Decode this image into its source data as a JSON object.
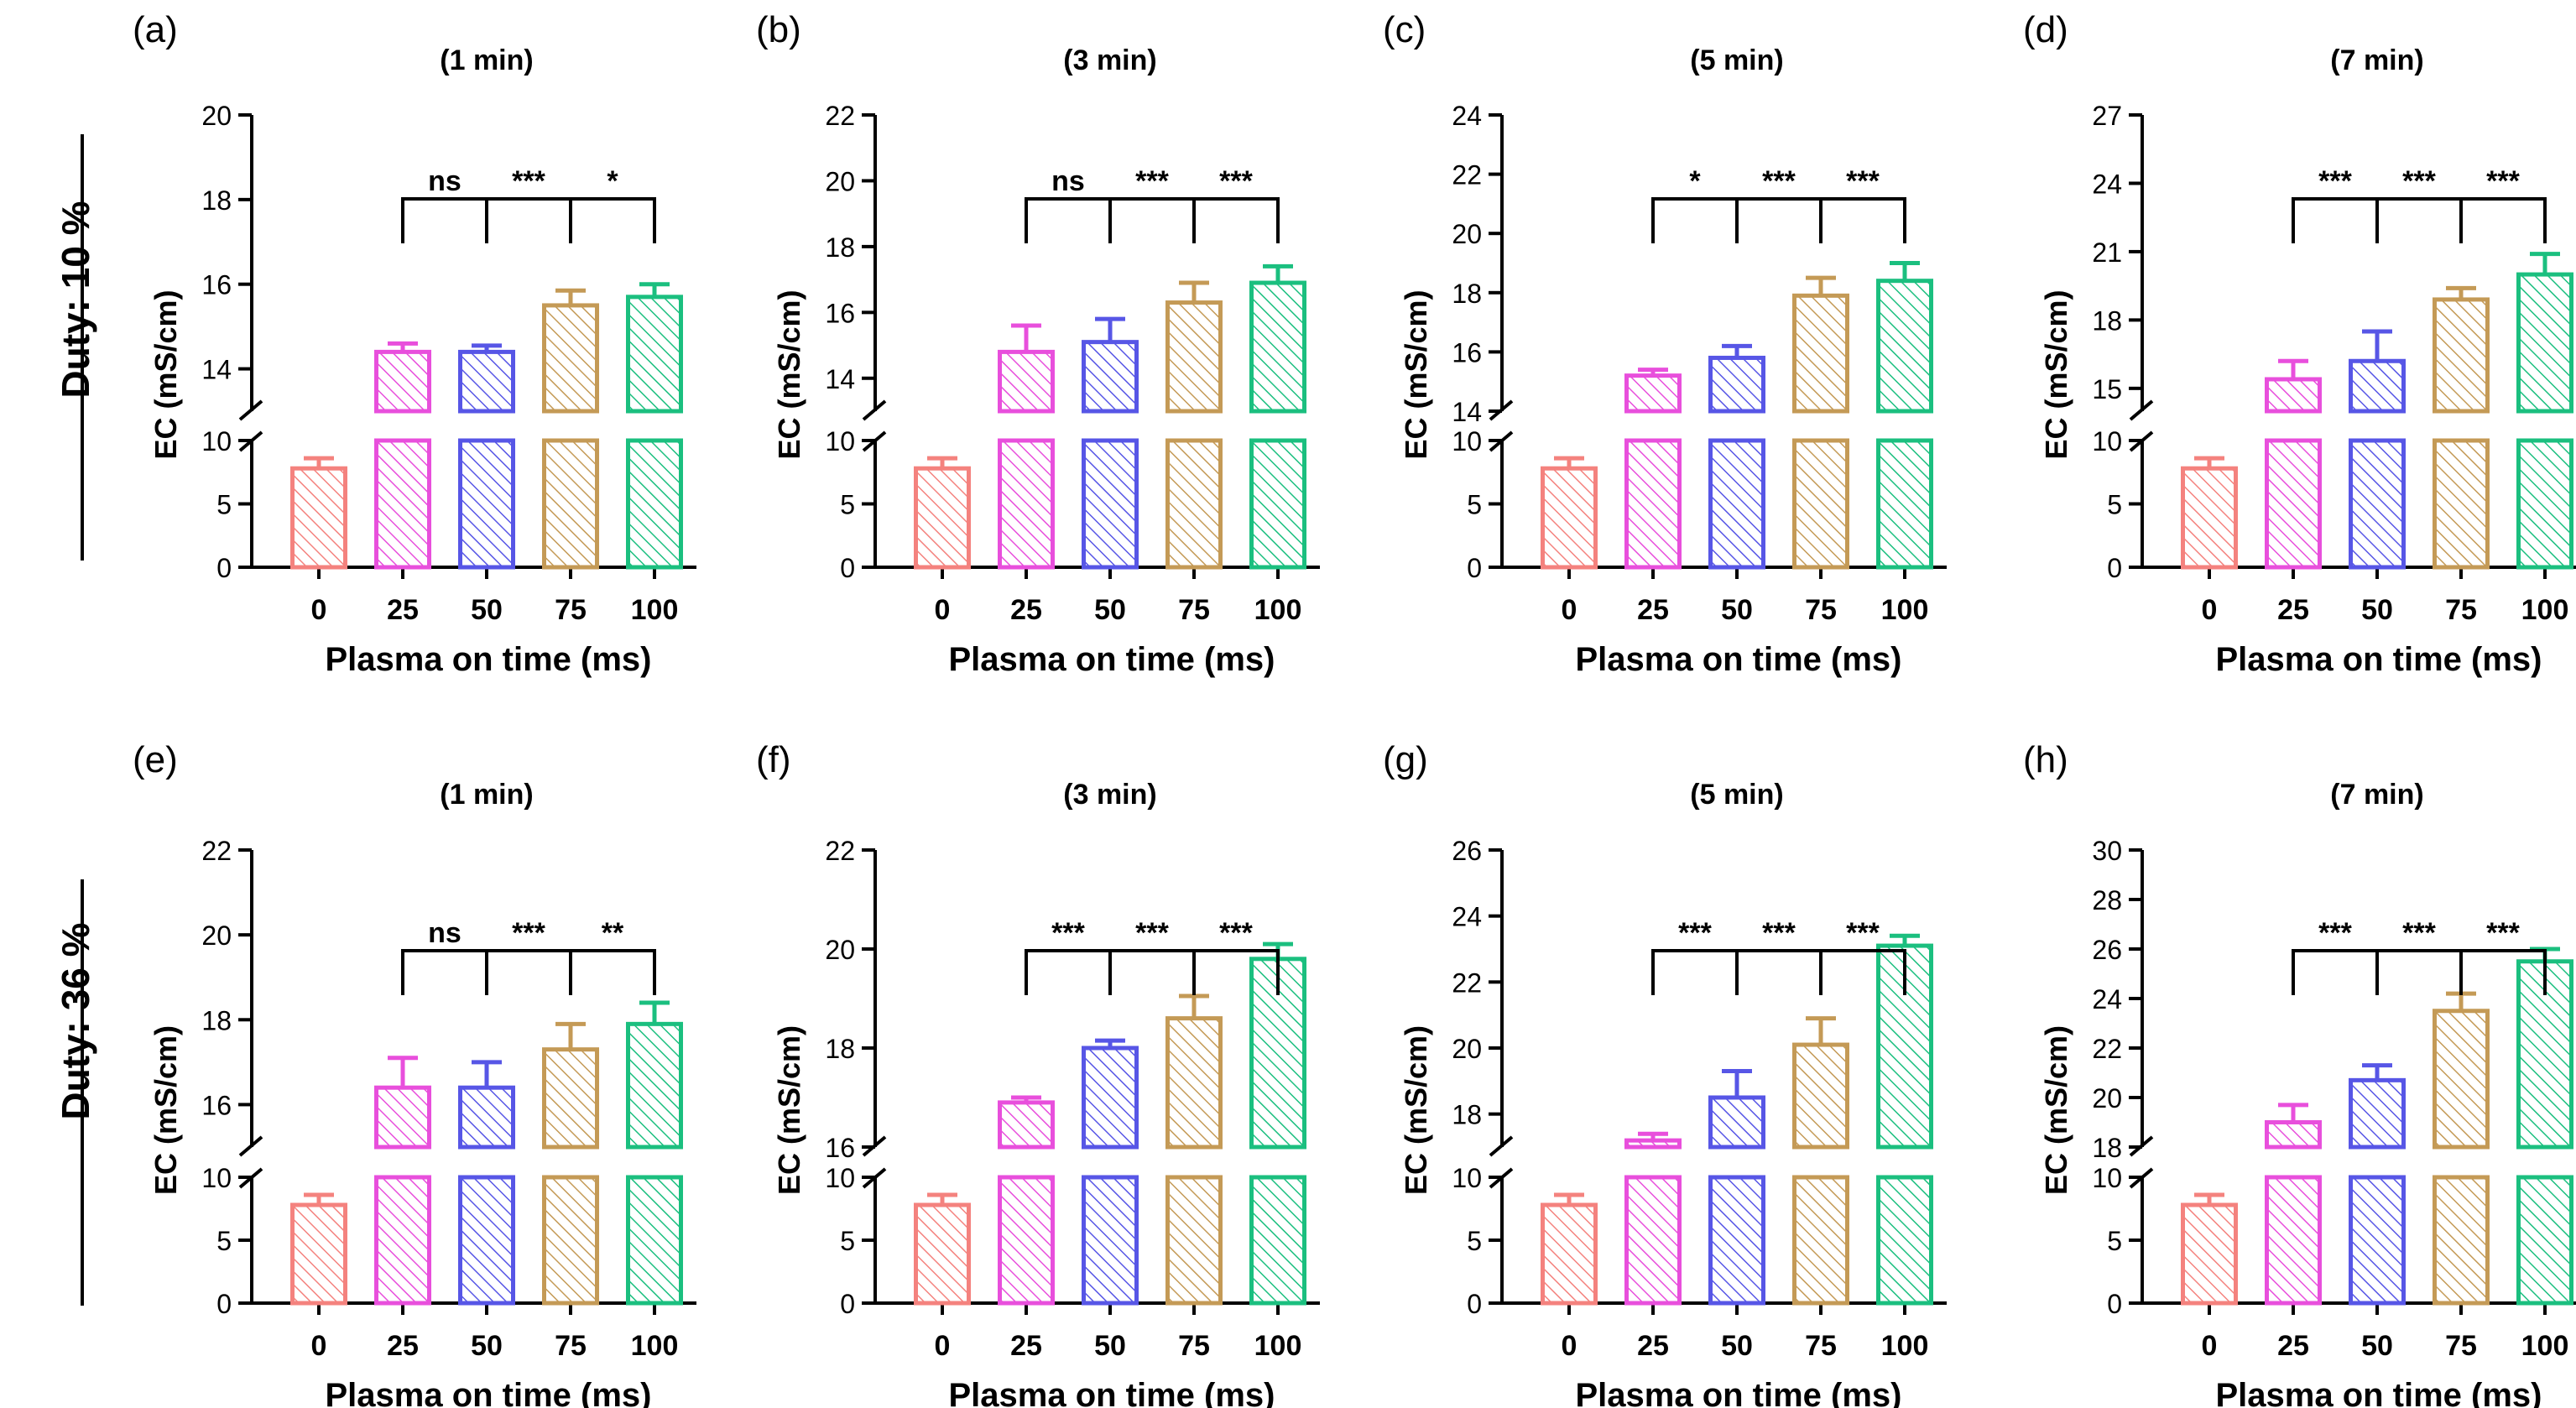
{
  "figure": {
    "row_labels": [
      "Duty: 10 %",
      "Duty: 36 %"
    ],
    "colors": [
      "#F4827E",
      "#E84FDC",
      "#5756E6",
      "#C49A56",
      "#1BBF7F"
    ],
    "ylabel": "EC (mS/cm)",
    "xlabel": "Plasma on time (ms)"
  },
  "chart_data": [
    {
      "panel": "(a)",
      "title": "(1 min)",
      "type": "bar",
      "categories": [
        "0",
        "25",
        "50",
        "75",
        "100"
      ],
      "values": [
        7.8,
        14.4,
        14.4,
        15.5,
        15.7
      ],
      "errors": [
        0.8,
        0.2,
        0.15,
        0.35,
        0.3
      ],
      "lower_ylim": [
        0,
        10
      ],
      "lower_ticks": [
        0,
        5,
        10
      ],
      "upper_ylim": [
        13,
        20
      ],
      "upper_ticks": [
        14,
        16,
        18,
        20
      ],
      "significance": [
        "ns",
        "***",
        "*"
      ],
      "xlabel": "Plasma on time (ms)",
      "ylabel": "EC (mS/cm)"
    },
    {
      "panel": "(b)",
      "title": "(3 min)",
      "type": "bar",
      "categories": [
        "0",
        "25",
        "50",
        "75",
        "100"
      ],
      "values": [
        7.8,
        14.8,
        15.1,
        16.3,
        16.9
      ],
      "errors": [
        0.8,
        0.8,
        0.7,
        0.6,
        0.5
      ],
      "lower_ylim": [
        0,
        10
      ],
      "lower_ticks": [
        0,
        5,
        10
      ],
      "upper_ylim": [
        13,
        22
      ],
      "upper_ticks": [
        14,
        16,
        18,
        20,
        22
      ],
      "significance": [
        "ns",
        "***",
        "***"
      ],
      "xlabel": "Plasma on time (ms)",
      "ylabel": "EC (mS/cm)"
    },
    {
      "panel": "(c)",
      "title": "(5 min)",
      "type": "bar",
      "categories": [
        "0",
        "25",
        "50",
        "75",
        "100"
      ],
      "values": [
        7.8,
        15.2,
        15.8,
        17.9,
        18.4
      ],
      "errors": [
        0.8,
        0.2,
        0.4,
        0.6,
        0.6
      ],
      "lower_ylim": [
        0,
        10
      ],
      "lower_ticks": [
        0,
        5,
        10
      ],
      "upper_ylim": [
        14,
        24
      ],
      "upper_ticks": [
        14,
        16,
        18,
        20,
        22,
        24
      ],
      "significance": [
        "*",
        "***",
        "***"
      ],
      "xlabel": "Plasma on time (ms)",
      "ylabel": "EC (mS/cm)"
    },
    {
      "panel": "(d)",
      "title": "(7 min)",
      "type": "bar",
      "categories": [
        "0",
        "25",
        "50",
        "75",
        "100"
      ],
      "values": [
        7.8,
        15.4,
        16.2,
        18.9,
        20.0
      ],
      "errors": [
        0.8,
        0.8,
        1.3,
        0.5,
        0.9
      ],
      "lower_ylim": [
        0,
        10
      ],
      "lower_ticks": [
        0,
        5,
        10
      ],
      "upper_ylim": [
        14,
        27
      ],
      "upper_ticks": [
        15,
        18,
        21,
        24,
        27
      ],
      "significance": [
        "***",
        "***",
        "***"
      ],
      "xlabel": "Plasma on time (ms)",
      "ylabel": "EC (mS/cm)"
    },
    {
      "panel": "(e)",
      "title": "(1 min)",
      "type": "bar",
      "categories": [
        "0",
        "25",
        "50",
        "75",
        "100"
      ],
      "values": [
        7.8,
        16.4,
        16.4,
        17.3,
        17.9
      ],
      "errors": [
        0.8,
        0.7,
        0.6,
        0.6,
        0.5
      ],
      "lower_ylim": [
        0,
        10
      ],
      "lower_ticks": [
        0,
        5,
        10
      ],
      "upper_ylim": [
        15,
        22
      ],
      "upper_ticks": [
        16,
        18,
        20,
        22
      ],
      "significance": [
        "ns",
        "***",
        "**"
      ],
      "xlabel": "Plasma on time (ms)",
      "ylabel": "EC (mS/cm)"
    },
    {
      "panel": "(f)",
      "title": "(3 min)",
      "type": "bar",
      "categories": [
        "0",
        "25",
        "50",
        "75",
        "100"
      ],
      "values": [
        7.8,
        16.9,
        18.0,
        18.6,
        19.8
      ],
      "errors": [
        0.8,
        0.1,
        0.15,
        0.45,
        0.3
      ],
      "lower_ylim": [
        0,
        10
      ],
      "lower_ticks": [
        0,
        5,
        10
      ],
      "upper_ylim": [
        16,
        22
      ],
      "upper_ticks": [
        16,
        18,
        20,
        22
      ],
      "significance": [
        "***",
        "***",
        "***"
      ],
      "xlabel": "Plasma on time (ms)",
      "ylabel": "EC (mS/cm)"
    },
    {
      "panel": "(g)",
      "title": "(5 min)",
      "type": "bar",
      "categories": [
        "0",
        "25",
        "50",
        "75",
        "100"
      ],
      "values": [
        7.8,
        17.2,
        18.5,
        20.1,
        23.1
      ],
      "errors": [
        0.8,
        0.2,
        0.8,
        0.8,
        0.3
      ],
      "lower_ylim": [
        0,
        10
      ],
      "lower_ticks": [
        0,
        5,
        10
      ],
      "upper_ylim": [
        17,
        26
      ],
      "upper_ticks": [
        18,
        20,
        22,
        24,
        26
      ],
      "significance": [
        "***",
        "***",
        "***"
      ],
      "xlabel": "Plasma on time (ms)",
      "ylabel": "EC (mS/cm)"
    },
    {
      "panel": "(h)",
      "title": "(7 min)",
      "type": "bar",
      "categories": [
        "0",
        "25",
        "50",
        "75",
        "100"
      ],
      "values": [
        7.8,
        19.0,
        20.7,
        23.5,
        25.5
      ],
      "errors": [
        0.8,
        0.7,
        0.6,
        0.7,
        0.5
      ],
      "lower_ylim": [
        0,
        10
      ],
      "lower_ticks": [
        0,
        5,
        10
      ],
      "upper_ylim": [
        18,
        30
      ],
      "upper_ticks": [
        18,
        20,
        22,
        24,
        26,
        28,
        30
      ],
      "significance": [
        "***",
        "***",
        "***"
      ],
      "xlabel": "Plasma on time (ms)",
      "ylabel": "EC (mS/cm)"
    }
  ]
}
